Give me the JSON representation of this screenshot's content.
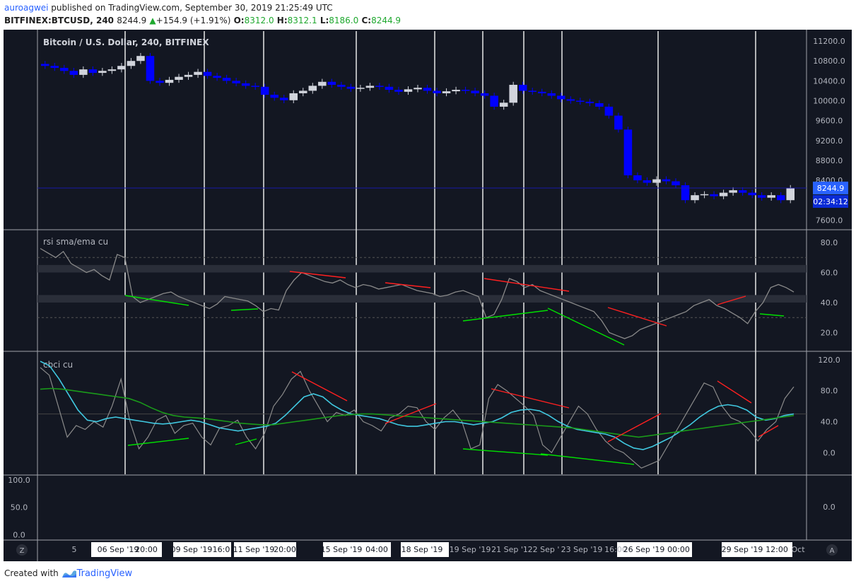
{
  "header": {
    "user": "auroagwei",
    "published": " published on TradingView.com, September 30, 2019 21:25:49 UTC",
    "symbol": "BITFINEX:BTCUSD, 240",
    "last": "8244.9",
    "change": "+154.9 (+1.91%)",
    "o_label": "O:",
    "o_value": "8312.0",
    "h_label": "H:",
    "h_value": "8312.1",
    "l_label": "L:",
    "l_value": "8186.0",
    "c_label": "C:",
    "c_value": "8244.9"
  },
  "footer": {
    "created_with": "Created with",
    "brand": "TradingView"
  },
  "colors": {
    "bg": "#131722",
    "up": "#d1d4dc",
    "down": "#0000ff",
    "green_line": "#00e000",
    "red_line": "#ff2020",
    "cyan": "#40c8e0",
    "sma_green": "#1a9a1a",
    "grey_line": "#8a8a8a"
  },
  "corner": {
    "left": "Z",
    "right": "A"
  },
  "chart_data": [
    {
      "type": "candlestick",
      "title": "Bitcoin / U.S. Dollar, 240, BITFINEX",
      "y_ticks": [
        "11200.0",
        "10800.0",
        "10400.0",
        "10000.0",
        "9600.0",
        "9200.0",
        "8800.0",
        "8400.0",
        "8000.0",
        "7600.0"
      ],
      "ylim": [
        7420,
        11400
      ],
      "last_price_label": "8244.9",
      "countdown_label": "02:34:12",
      "close_approx": [
        10700,
        10660,
        10600,
        10520,
        10630,
        10560,
        10600,
        10630,
        10700,
        10800,
        10900,
        10400,
        10360,
        10420,
        10480,
        10520,
        10580,
        10500,
        10460,
        10400,
        10350,
        10300,
        10280,
        10120,
        10060,
        10010,
        10150,
        10200,
        10300,
        10380,
        10320,
        10280,
        10240,
        10260,
        10300,
        10280,
        10220,
        10180,
        10230,
        10260,
        10200,
        10150,
        10190,
        10220,
        10200,
        10150,
        10100,
        9880,
        9960,
        10320,
        10200,
        10180,
        10150,
        10100,
        10030,
        10000,
        9980,
        9950,
        9880,
        9700,
        9420,
        8500,
        8400,
        8350,
        8420,
        8380,
        8300,
        8000,
        8100,
        8120,
        8080,
        8150,
        8200,
        8150,
        8100,
        8050,
        8100,
        8000,
        8244
      ]
    },
    {
      "type": "line",
      "title": "rsi sma/ema cu",
      "y_ticks": [
        "80.0",
        "60.0",
        "40.0",
        "20.0"
      ],
      "ylim": [
        8,
        88
      ],
      "bands": [
        [
          60,
          65
        ],
        [
          40,
          45
        ]
      ],
      "dashed_levels": [
        70,
        30
      ],
      "values": [
        76,
        73,
        70,
        74,
        66,
        63,
        60,
        62,
        58,
        55,
        72,
        70,
        44,
        40,
        42,
        44,
        46,
        47,
        44,
        42,
        40,
        38,
        36,
        39,
        44,
        43,
        42,
        41,
        38,
        34,
        36,
        35,
        48,
        55,
        60,
        58,
        56,
        54,
        53,
        55,
        52,
        50,
        52,
        51,
        49,
        50,
        51,
        52,
        50,
        48,
        47,
        46,
        44,
        45,
        47,
        48,
        46,
        44,
        30,
        32,
        42,
        56,
        54,
        50,
        52,
        48,
        46,
        44,
        42,
        40,
        38,
        36,
        34,
        28,
        20,
        18,
        16,
        18,
        22,
        24,
        26,
        28,
        30,
        32,
        34,
        38,
        40,
        42,
        38,
        36,
        33,
        30,
        26,
        34,
        40,
        50,
        52,
        50,
        47
      ]
    },
    {
      "type": "line",
      "title": "cbci cu",
      "y_ticks": [
        "120.0",
        "80.0",
        "40.0",
        "0.0"
      ],
      "ylim": [
        -28,
        130
      ],
      "dashed_levels": [
        50
      ],
      "series": [
        {
          "values": [
            110,
            100,
            60,
            20,
            35,
            30,
            40,
            33,
            60,
            95,
            40,
            5,
            20,
            42,
            48,
            25,
            35,
            38,
            20,
            10,
            32,
            35,
            42,
            20,
            5,
            25,
            60,
            75,
            95,
            105,
            80,
            60,
            40,
            52,
            48,
            55,
            40,
            35,
            28,
            45,
            50,
            60,
            58,
            40,
            30,
            45,
            55,
            40,
            5,
            10,
            70,
            88,
            80,
            70,
            60,
            48,
            10,
            0,
            20,
            40,
            60,
            50,
            30,
            15,
            5,
            0,
            -10,
            -20,
            -15,
            -10,
            10,
            30,
            50,
            70,
            90,
            85,
            60,
            45,
            40,
            30,
            15,
            30,
            40,
            70,
            85
          ]
        },
        {
          "values": [
            118,
            112,
            95,
            75,
            55,
            42,
            40,
            44,
            46,
            44,
            42,
            40,
            38,
            37,
            38,
            40,
            42,
            40,
            36,
            32,
            30,
            28,
            30,
            32,
            34,
            38,
            48,
            60,
            72,
            76,
            72,
            62,
            55,
            50,
            48,
            46,
            44,
            40,
            36,
            34,
            34,
            36,
            38,
            40,
            40,
            38,
            36,
            38,
            40,
            45,
            52,
            55,
            56,
            54,
            48,
            40,
            34,
            30,
            28,
            26,
            24,
            20,
            12,
            6,
            4,
            8,
            14,
            20,
            28,
            36,
            46,
            54,
            60,
            62,
            60,
            55,
            46,
            42,
            44,
            48,
            50
          ]
        },
        {
          "values": [
            82,
            83,
            82,
            80,
            78,
            76,
            74,
            72,
            70,
            65,
            58,
            52,
            48,
            46,
            45,
            44,
            42,
            40,
            38,
            37,
            36,
            36,
            38,
            40,
            42,
            44,
            46,
            48,
            49,
            50,
            50,
            49,
            48,
            47,
            46,
            45,
            44,
            43,
            42,
            41,
            40,
            39,
            38,
            37,
            36,
            35,
            34,
            33,
            32,
            30,
            28,
            26,
            24,
            22,
            20,
            22,
            24,
            26,
            28,
            30,
            32,
            34,
            36,
            38,
            40,
            42,
            44,
            46,
            48
          ]
        }
      ]
    },
    {
      "type": "line",
      "title": "",
      "y_ticks_left": [
        "100.0",
        "50.0",
        "0.0"
      ],
      "y_ticks_right": [
        "0.0"
      ]
    }
  ],
  "x_axis": {
    "ticks": [
      "5",
      "06 Sep '19",
      "20:00",
      "09 Sep '19",
      "16:0",
      "11 Sep '19",
      "20:00",
      "15 Sep '19",
      "04:00",
      "18 Sep '19",
      "19 Sep '19",
      "21 Sep '1",
      "22 Sep '",
      "23 Sep '19",
      "16:00",
      "26 Sep '19",
      "00:00",
      "29 Sep '19",
      "12:00",
      "Oct"
    ]
  }
}
